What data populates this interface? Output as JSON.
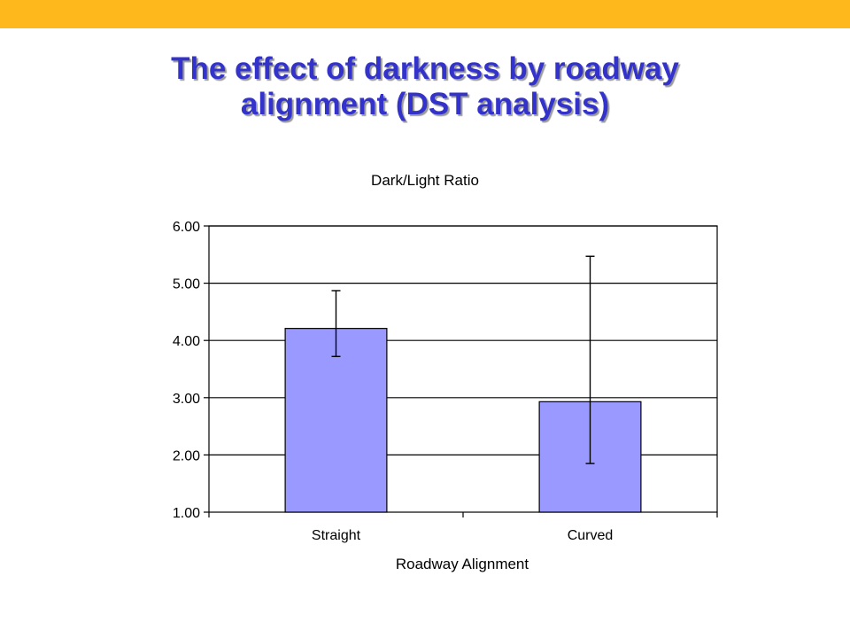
{
  "slide": {
    "title_line1": "The effect of darkness by roadway",
    "title_line2": "alignment (DST analysis)",
    "title_color": "#3333cc",
    "band_color": "#ffb81c"
  },
  "chart_data": {
    "type": "bar",
    "title": "Dark/Light Ratio",
    "xlabel": "Roadway Alignment",
    "ylabel": "",
    "categories": [
      "Straight",
      "Curved"
    ],
    "values": [
      4.21,
      2.93
    ],
    "error_bars": [
      {
        "low": 3.72,
        "high": 4.87
      },
      {
        "low": 1.85,
        "high": 5.47
      }
    ],
    "ylim": [
      1.0,
      6.0
    ],
    "yticks": [
      "1.00",
      "2.00",
      "3.00",
      "4.00",
      "5.00",
      "6.00"
    ],
    "grid": true,
    "legend": "none",
    "bar_color": "#9999ff"
  }
}
